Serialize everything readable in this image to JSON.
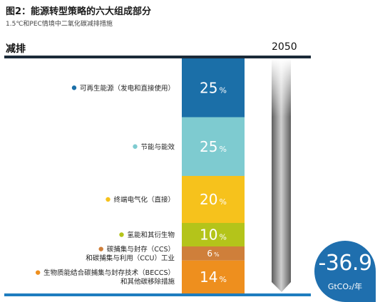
{
  "title": "图2：能源转型策略的六大组成部分",
  "subtitle": "1.5℃和PEC情境中二氧化碳减排措施",
  "column_left_label": "减排",
  "column_right_label": "2050",
  "total": {
    "value": "-36.9",
    "unit": "GtCO₂/年"
  },
  "colors": {
    "renewables": "#1b6fa8",
    "efficiency": "#7ecbd0",
    "electrification": "#f6c21c",
    "hydrogen": "#b4c41a",
    "ccs": "#cf7f3a",
    "beccs": "#ee8f1e",
    "total_badge": "#1f6fae",
    "baseline": "#1e7dbf"
  },
  "chart_data": {
    "type": "bar",
    "title": "图2：能源转型策略的六大组成部分",
    "subtitle": "1.5℃和PEC情境中二氧化碳减排措施",
    "categories": [
      "可再生能源（发电和直接使用）",
      "节能与能效",
      "终端电气化（直接）",
      "氢能和其衍生物",
      "碳捕集与封存（CCS）和碳捕集与利用（CCU）工业",
      "生物质能结合碳捕集与封存技术（BECCS）和其他碳移除措施"
    ],
    "category_lines": [
      [
        "可再生能源（发电和直接使用）"
      ],
      [
        "节能与能效"
      ],
      [
        "终端电气化（直接）"
      ],
      [
        "氢能和其衍生物"
      ],
      [
        "碳捕集与封存（CCS）",
        "和碳捕集与利用（CCU）工业"
      ],
      [
        "生物质能结合碳捕集与封存技术（BECCS）",
        "和其他碳移除措施"
      ]
    ],
    "values": [
      25,
      25,
      20,
      10,
      6,
      14
    ],
    "value_labels": [
      "25",
      "25",
      "20",
      "10",
      "6",
      "14"
    ],
    "value_suffix": "%",
    "total": -36.9,
    "total_unit": "GtCO₂/年",
    "year": "2050"
  }
}
